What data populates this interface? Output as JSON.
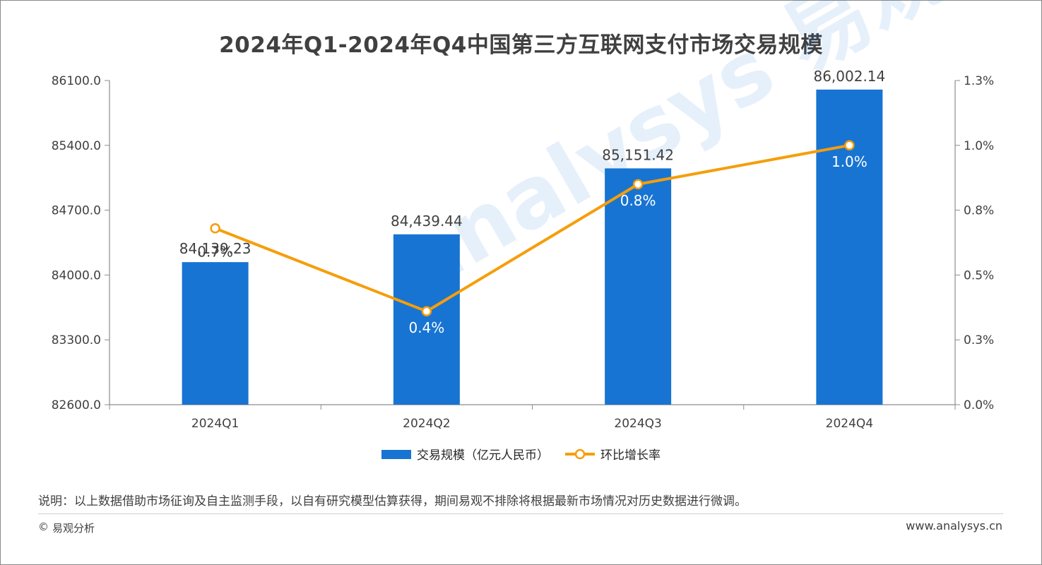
{
  "header": {
    "title": "2024年Q1-2024年Q4中国第三方互联网支付市场交易规模"
  },
  "chart_data": {
    "type": "bar+line",
    "title": "2024年Q1-2024年Q4中国第三方互联网支付市场交易规模",
    "categories": [
      "2024Q1",
      "2024Q2",
      "2024Q3",
      "2024Q4"
    ],
    "series": [
      {
        "name": "交易规模（亿元人民币）",
        "type": "bar",
        "axis": "left",
        "values": [
          84139.23,
          84439.44,
          85151.42,
          86002.14
        ],
        "labels": [
          "84,139.23",
          "84,439.44",
          "85,151.42",
          "86,002.14"
        ],
        "color": "#1874D2"
      },
      {
        "name": "环比增长率",
        "type": "line",
        "axis": "right",
        "values": [
          0.7,
          0.4,
          0.8,
          1.0
        ],
        "plot_values": [
          0.68,
          0.36,
          0.85,
          1.0
        ],
        "labels": [
          "0.7%",
          "0.4%",
          "0.8%",
          "1.0%"
        ],
        "color": "#F59E0B"
      }
    ],
    "y_left": {
      "min": 82600,
      "max": 86100,
      "ticks": [
        "82600.0",
        "83300.0",
        "84000.0",
        "84700.0",
        "85400.0",
        "86100.0"
      ]
    },
    "y_right": {
      "min": 0,
      "max": 1.25,
      "ticks": [
        "0.0%",
        "0.3%",
        "0.5%",
        "0.8%",
        "1.0%",
        "1.3%"
      ]
    },
    "legend_position": "bottom",
    "grid": false,
    "watermark": "analysys 易观分析"
  },
  "footer": {
    "note": "说明：以上数据借助市场征询及自主监测手段，以自有研究模型估算获得，期间易观不排除将根据最新市场情况对历史数据进行微调。",
    "copyright_symbol": "©",
    "copyright": "易观分析",
    "website": "www.analysys.cn"
  }
}
